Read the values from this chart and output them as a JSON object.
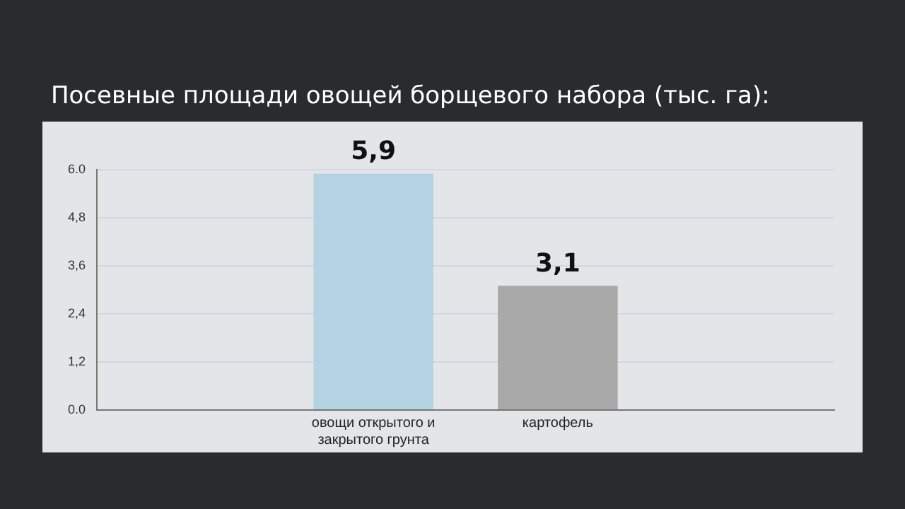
{
  "chart_data": {
    "type": "bar",
    "title": "Посевные площади овощей борщевого набора (тыс. га):",
    "categories": [
      null,
      "овощи открытого и закрытого грунта",
      "картофель",
      null
    ],
    "values": [
      null,
      5.9,
      3.1,
      null
    ],
    "colors": [
      "#b3d2e2",
      "#b3d2e2",
      "#a9a9a9",
      "#a9a9a9"
    ],
    "value_labels": [
      null,
      "5,9",
      "3,1",
      null
    ],
    "ylim": [
      0,
      6
    ],
    "yticks": [
      {
        "value": 0,
        "label": "0.0"
      },
      {
        "value": 1.2,
        "label": "1,2"
      },
      {
        "value": 2.4,
        "label": "2,4"
      },
      {
        "value": 3.6,
        "label": "3,6"
      },
      {
        "value": 4.8,
        "label": "4,8"
      },
      {
        "value": 6,
        "label": "6.0"
      }
    ],
    "grid": "y",
    "legend": false
  }
}
